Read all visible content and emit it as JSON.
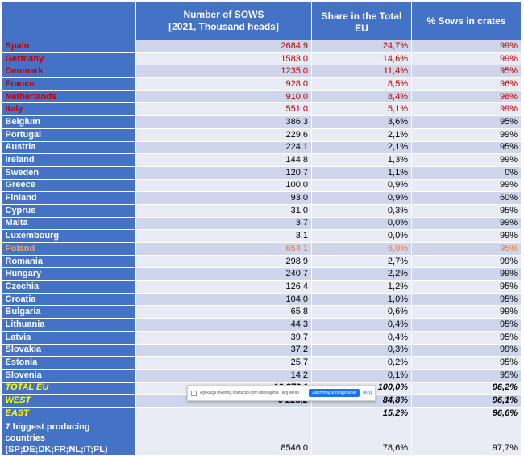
{
  "headers": {
    "country": "",
    "sows": "Number of SOWS\n[2021, Thousand heads]",
    "share": "Share in the Total EU",
    "crates": "% Sows in crates"
  },
  "rows": [
    {
      "country": "Spain",
      "sows": "2684,9",
      "share": "24,7%",
      "crates": "99%",
      "style": "red"
    },
    {
      "country": "Germany",
      "sows": "1583,0",
      "share": "14,6%",
      "crates": "99%",
      "style": "red"
    },
    {
      "country": "Denmark",
      "sows": "1235,0",
      "share": "11,4%",
      "crates": "95%",
      "style": "red"
    },
    {
      "country": "France",
      "sows": "928,0",
      "share": "8,5%",
      "crates": "96%",
      "style": "red"
    },
    {
      "country": "Netherlands",
      "sows": "910,0",
      "share": "8,4%",
      "crates": "98%",
      "style": "red"
    },
    {
      "country": "Italy",
      "sows": "551,0",
      "share": "5,1%",
      "crates": "99%",
      "style": "red"
    },
    {
      "country": "Belgium",
      "sows": "386,3",
      "share": "3,6%",
      "crates": "95%",
      "style": ""
    },
    {
      "country": "Portugal",
      "sows": "229,6",
      "share": "2,1%",
      "crates": "99%",
      "style": ""
    },
    {
      "country": "Austria",
      "sows": "224,1",
      "share": "2,1%",
      "crates": "95%",
      "style": ""
    },
    {
      "country": "Ireland",
      "sows": "144,8",
      "share": "1,3%",
      "crates": "99%",
      "style": ""
    },
    {
      "country": "Sweden",
      "sows": "120,7",
      "share": "1,1%",
      "crates": "0%",
      "style": ""
    },
    {
      "country": "Greece",
      "sows": "100,0",
      "share": "0,9%",
      "crates": "99%",
      "style": ""
    },
    {
      "country": "Finland",
      "sows": "93,0",
      "share": "0,9%",
      "crates": "60%",
      "style": ""
    },
    {
      "country": "Cyprus",
      "sows": "31,0",
      "share": "0,3%",
      "crates": "95%",
      "style": ""
    },
    {
      "country": "Malta",
      "sows": "3,7",
      "share": "0,0%",
      "crates": "99%",
      "style": ""
    },
    {
      "country": "Luxembourg",
      "sows": "3,1",
      "share": "0,0%",
      "crates": "99%",
      "style": ""
    },
    {
      "country": "Poland",
      "sows": "654,1",
      "share": "6,0%",
      "crates": "95%",
      "style": "orange"
    },
    {
      "country": "Romania",
      "sows": "298,9",
      "share": "2,7%",
      "crates": "99%",
      "style": ""
    },
    {
      "country": "Hungary",
      "sows": "240,7",
      "share": "2,2%",
      "crates": "99%",
      "style": ""
    },
    {
      "country": "Czechia",
      "sows": "126,4",
      "share": "1,2%",
      "crates": "95%",
      "style": ""
    },
    {
      "country": "Croatia",
      "sows": "104,0",
      "share": "1,0%",
      "crates": "95%",
      "style": ""
    },
    {
      "country": "Bulgaria",
      "sows": "65,8",
      "share": "0,6%",
      "crates": "99%",
      "style": ""
    },
    {
      "country": "Lithuania",
      "sows": "44,3",
      "share": "0,4%",
      "crates": "95%",
      "style": ""
    },
    {
      "country": "Latvia",
      "sows": "39,7",
      "share": "0,4%",
      "crates": "95%",
      "style": ""
    },
    {
      "country": "Slovakia",
      "sows": "37,2",
      "share": "0,3%",
      "crates": "99%",
      "style": ""
    },
    {
      "country": "Estonia",
      "sows": "25,7",
      "share": "0,2%",
      "crates": "95%",
      "style": ""
    },
    {
      "country": "Slovenia",
      "sows": "14,2",
      "share": "0,1%",
      "crates": "95%",
      "style": ""
    }
  ],
  "totals": [
    {
      "country": "TOTAL EU",
      "sows": "10 879,1",
      "share": "100,0%",
      "crates": "96,2%"
    },
    {
      "country": "WEST",
      "sows": "9 228,2",
      "share": "84,8%",
      "crates": "96,1%"
    },
    {
      "country": "EAST",
      "sows": "",
      "share": "15,2%",
      "crates": "96,6%"
    }
  ],
  "biggest": {
    "country": "7 biggest producing countries (SP;DE;DK;FR;NL;IT;PL)",
    "sows": "8546,0",
    "share": "78,6%",
    "crates": "97,7%"
  },
  "notice": {
    "text": "Aplikacja meeting.interactio.com udostępnia Twój ekran.",
    "stop": "Zatrzymaj udostępnianie",
    "hide": "Ukryj"
  },
  "colors": {
    "header": "#4472c4",
    "band_dark": "#cfd5ea",
    "band_light": "#e9ebf5",
    "top_countries": "#c00000",
    "poland": "#ed7d31",
    "totals_label": "#ffff00"
  }
}
